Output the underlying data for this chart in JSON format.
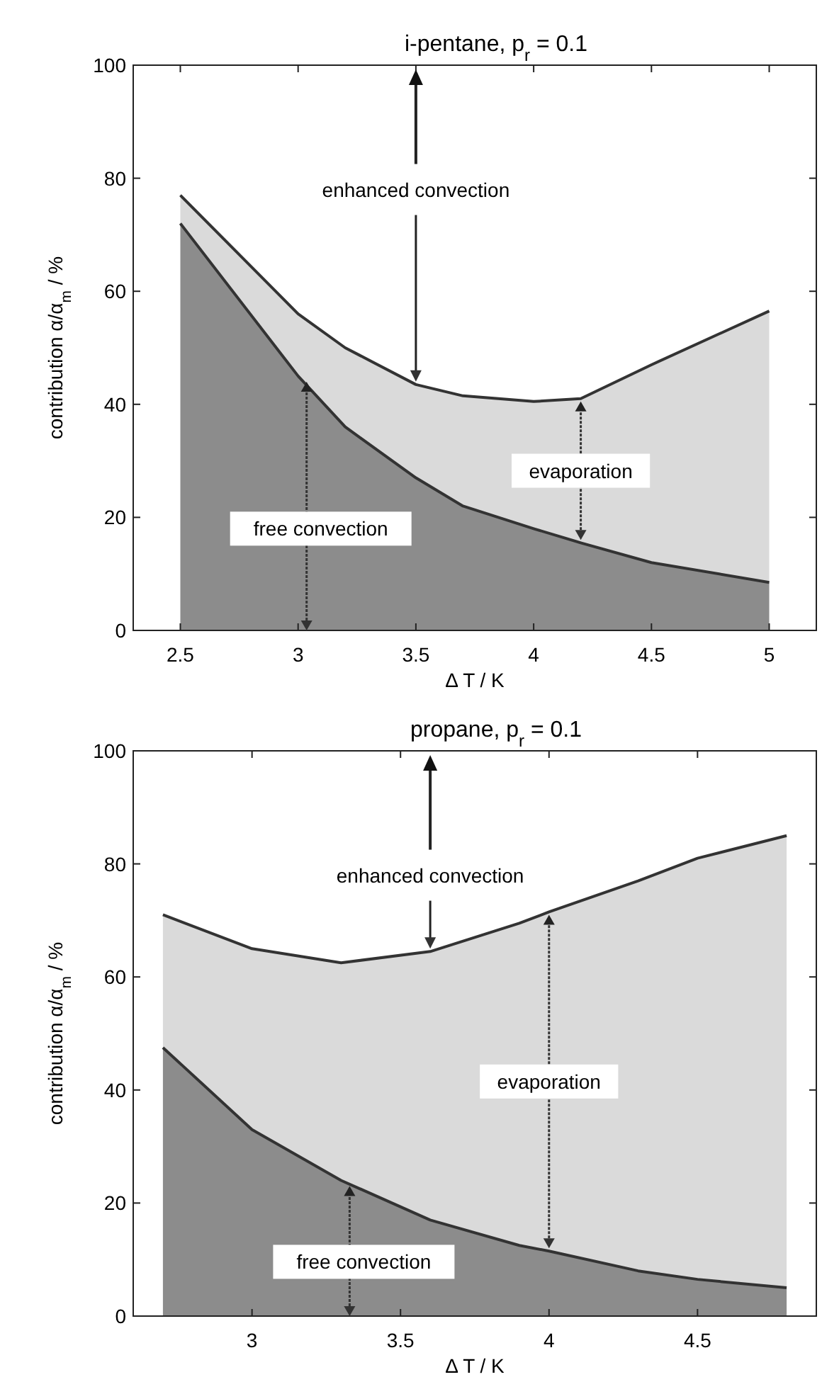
{
  "chart_data": [
    {
      "type": "area",
      "title": "i-pentane, p$_{r}$ = 0.1",
      "xlabel": "Δ T / K",
      "ylabel": "contribution α/α$_{m}$ / %",
      "stacked": true,
      "grid": false,
      "x": [
        2.5,
        3,
        3.2,
        3.5,
        3.7,
        4,
        4.2,
        4.5,
        5
      ],
      "series": [
        {
          "name": "free convection",
          "color": "#8c8c8c",
          "values": [
            72,
            45,
            36,
            27,
            22,
            18,
            15.5,
            12,
            8.5
          ]
        },
        {
          "name": "evaporation",
          "color": "#dadada",
          "values": [
            5,
            11,
            14,
            16.5,
            19.5,
            22.5,
            25.5,
            35,
            48
          ]
        }
      ],
      "annotations": [
        "enhanced convection"
      ],
      "xlim": [
        2.3,
        5.2
      ],
      "xticks": [
        2.5,
        3,
        3.5,
        4,
        4.5,
        5
      ],
      "ylim": [
        0,
        100
      ],
      "yticks": [
        0,
        20,
        40,
        60,
        80,
        100
      ]
    },
    {
      "type": "area",
      "title": "propane, p$_{r}$ = 0.1",
      "xlabel": "Δ T / K",
      "ylabel": "contribution α/α$_{m}$ / %",
      "stacked": true,
      "grid": false,
      "x": [
        2.7,
        3,
        3.3,
        3.6,
        3.9,
        4,
        4.3,
        4.5,
        4.8
      ],
      "series": [
        {
          "name": "free convection",
          "color": "#8c8c8c",
          "values": [
            47.5,
            33,
            24,
            17,
            12.5,
            11.5,
            8,
            6.5,
            5
          ]
        },
        {
          "name": "evaporation",
          "color": "#dadada",
          "values": [
            23.5,
            32,
            38.5,
            47.5,
            57,
            60,
            69,
            74.5,
            80
          ]
        }
      ],
      "annotations": [
        "enhanced convection"
      ],
      "xlim": [
        2.6,
        4.9
      ],
      "xticks": [
        3,
        3.5,
        4,
        4.5
      ],
      "ylim": [
        0,
        100
      ],
      "yticks": [
        0,
        20,
        40,
        60,
        80,
        100
      ]
    }
  ]
}
